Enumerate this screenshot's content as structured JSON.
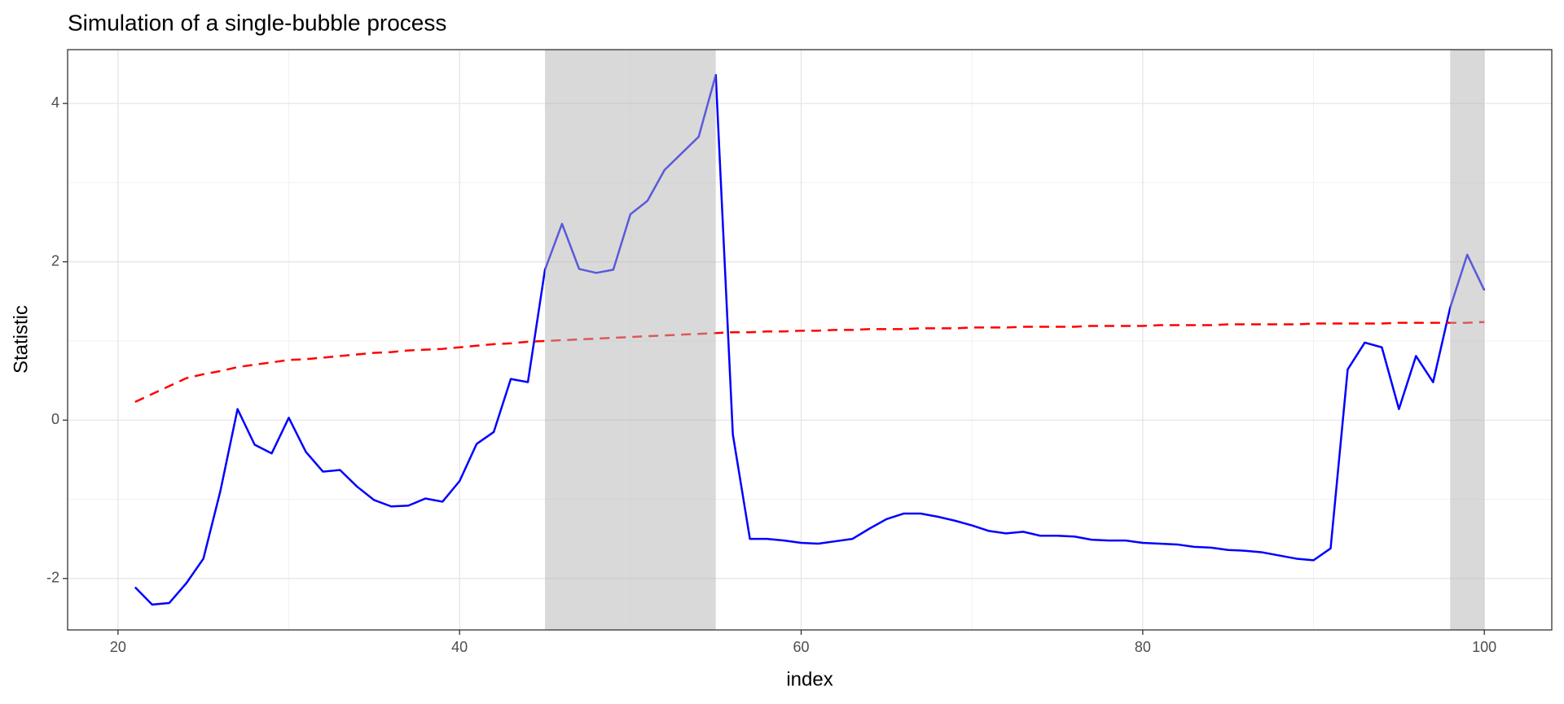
{
  "chart_data": {
    "type": "line",
    "title": "Simulation of a single-bubble process",
    "x_label": "index",
    "y_label": "Statistic",
    "x": [
      21,
      22,
      23,
      24,
      25,
      26,
      27,
      28,
      29,
      30,
      31,
      32,
      33,
      34,
      35,
      36,
      37,
      38,
      39,
      40,
      41,
      42,
      43,
      44,
      45,
      46,
      47,
      48,
      49,
      50,
      51,
      52,
      53,
      54,
      55,
      56,
      57,
      58,
      59,
      60,
      61,
      62,
      63,
      64,
      65,
      66,
      67,
      68,
      69,
      70,
      71,
      72,
      73,
      74,
      75,
      76,
      77,
      78,
      79,
      80,
      81,
      82,
      83,
      84,
      85,
      86,
      87,
      88,
      89,
      90,
      91,
      92,
      93,
      94,
      95,
      96,
      97,
      98,
      99,
      100
    ],
    "series": [
      {
        "color": "#0000ff",
        "linestyle": "solid",
        "values": [
          -2.11,
          -2.33,
          -2.31,
          -2.06,
          -1.75,
          -0.89,
          0.14,
          -0.31,
          -0.42,
          0.03,
          -0.4,
          -0.65,
          -0.63,
          -0.84,
          -1.01,
          -1.09,
          -1.08,
          -0.99,
          -1.03,
          -0.77,
          -0.3,
          -0.15,
          0.52,
          0.48,
          1.9,
          2.48,
          1.91,
          1.86,
          1.9,
          2.6,
          2.77,
          3.16,
          3.37,
          3.58,
          4.36,
          -0.18,
          -1.5,
          -1.5,
          -1.52,
          -1.55,
          -1.56,
          -1.53,
          -1.5,
          -1.37,
          -1.25,
          -1.18,
          -1.18,
          -1.22,
          -1.27,
          -1.33,
          -1.4,
          -1.43,
          -1.41,
          -1.46,
          -1.46,
          -1.47,
          -1.51,
          -1.52,
          -1.52,
          -1.55,
          -1.56,
          -1.57,
          -1.6,
          -1.61,
          -1.64,
          -1.65,
          -1.67,
          -1.71,
          -1.75,
          -1.77,
          -1.62,
          0.64,
          0.98,
          0.92,
          0.14,
          0.81,
          0.48,
          1.42,
          2.09,
          1.64
        ]
      },
      {
        "color": "#ff0000",
        "linestyle": "dashed",
        "values": [
          0.23,
          0.33,
          0.43,
          0.53,
          0.58,
          0.62,
          0.67,
          0.7,
          0.73,
          0.76,
          0.77,
          0.79,
          0.81,
          0.83,
          0.85,
          0.86,
          0.88,
          0.89,
          0.9,
          0.92,
          0.94,
          0.96,
          0.97,
          0.99,
          1.0,
          1.01,
          1.02,
          1.03,
          1.04,
          1.05,
          1.06,
          1.07,
          1.08,
          1.09,
          1.1,
          1.11,
          1.11,
          1.12,
          1.12,
          1.13,
          1.13,
          1.14,
          1.14,
          1.15,
          1.15,
          1.15,
          1.16,
          1.16,
          1.16,
          1.17,
          1.17,
          1.17,
          1.18,
          1.18,
          1.18,
          1.18,
          1.19,
          1.19,
          1.19,
          1.19,
          1.2,
          1.2,
          1.2,
          1.2,
          1.21,
          1.21,
          1.21,
          1.21,
          1.21,
          1.22,
          1.22,
          1.22,
          1.22,
          1.22,
          1.23,
          1.23,
          1.23,
          1.23,
          1.23,
          1.24
        ]
      }
    ],
    "shaded": [
      [
        45,
        55
      ],
      [
        98,
        100
      ]
    ],
    "shade_color": "#b3b3b3",
    "xlim": [
      17.05,
      103.95
    ],
    "ylim": [
      -2.65,
      4.68
    ],
    "xticks": [
      20,
      40,
      60,
      80,
      100
    ],
    "yticks": [
      -2,
      0,
      2,
      4
    ],
    "minor_xticks": [
      30,
      50,
      70,
      90
    ],
    "minor_yticks": [
      -1,
      1,
      3
    ],
    "grid": true
  }
}
